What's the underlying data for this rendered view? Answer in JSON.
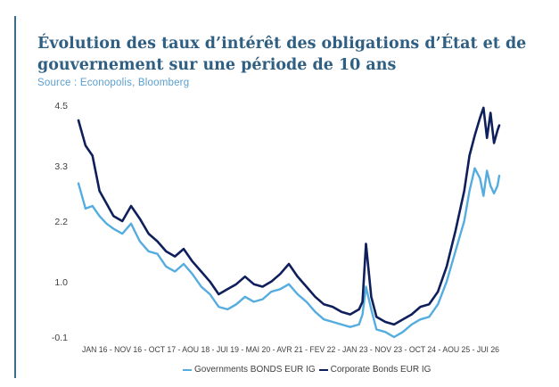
{
  "header": {
    "title": "Évolution des taux d’intérêt des obligations d’État et de gouvernement sur une période de 10 ans",
    "subtitle": "Source : Econopolis, Bloomberg"
  },
  "colors": {
    "accent_bar": "#3d6b8c",
    "title": "#2f5f82",
    "subtitle": "#5a9fcf",
    "governments": "#55acdf",
    "corporate": "#0f1f5c"
  },
  "legend": {
    "governments": "Governments BONDS EUR IG",
    "corporate": "Corporate Bonds EUR IG"
  },
  "chart_data": {
    "type": "line",
    "title": "",
    "xlabel": "",
    "ylabel": "",
    "ylim": [
      -0.1,
      4.5
    ],
    "yticks": [
      "4.5",
      "3.3",
      "2.2",
      "1.0",
      "-0.1"
    ],
    "ytick_values": [
      4.5,
      3.3,
      2.2,
      1.0,
      -0.1
    ],
    "xticks": [
      "JAN 16",
      "NOV 16",
      "OCT 17",
      "AOU 18",
      "JUI 19",
      "MAI 20",
      "AVR 21",
      "FEV 22",
      "JAN 23",
      "NOV 23",
      "OCT 24",
      "AOU 25",
      "JUI 26"
    ],
    "grid": false,
    "legend_position": "bottom",
    "x": [
      0,
      0.2,
      0.4,
      0.6,
      0.8,
      1,
      1.25,
      1.5,
      1.75,
      2,
      2.25,
      2.5,
      2.75,
      3,
      3.25,
      3.5,
      3.75,
      4,
      4.25,
      4.5,
      4.75,
      5,
      5.25,
      5.5,
      5.75,
      6,
      6.25,
      6.5,
      6.75,
      7,
      7.25,
      7.5,
      7.75,
      8,
      8.1,
      8.2,
      8.35,
      8.5,
      8.75,
      9,
      9.25,
      9.5,
      9.75,
      10,
      10.25,
      10.5,
      10.75,
      11,
      11.15,
      11.3,
      11.45,
      11.55,
      11.65,
      11.75,
      11.85,
      11.95,
      12
    ],
    "series": [
      {
        "name": "Governments BONDS EUR IG",
        "values": [
          2.95,
          2.45,
          2.5,
          2.3,
          2.15,
          2.05,
          1.95,
          2.15,
          1.8,
          1.6,
          1.55,
          1.3,
          1.2,
          1.35,
          1.15,
          0.9,
          0.75,
          0.5,
          0.45,
          0.55,
          0.7,
          0.6,
          0.65,
          0.8,
          0.85,
          0.95,
          0.75,
          0.6,
          0.4,
          0.25,
          0.2,
          0.15,
          0.1,
          0.15,
          0.35,
          0.9,
          0.45,
          0.05,
          0.0,
          -0.1,
          0.0,
          0.15,
          0.25,
          0.3,
          0.55,
          1.0,
          1.6,
          2.2,
          2.8,
          3.25,
          3.05,
          2.7,
          3.2,
          2.9,
          2.75,
          2.9,
          3.1
        ]
      },
      {
        "name": "Corporate Bonds EUR IG",
        "values": [
          4.2,
          3.7,
          3.5,
          2.8,
          2.55,
          2.3,
          2.2,
          2.5,
          2.25,
          1.95,
          1.8,
          1.6,
          1.5,
          1.65,
          1.4,
          1.2,
          1.0,
          0.75,
          0.85,
          0.95,
          1.1,
          0.95,
          0.9,
          1.0,
          1.15,
          1.35,
          1.1,
          0.9,
          0.7,
          0.55,
          0.5,
          0.4,
          0.35,
          0.45,
          0.6,
          1.75,
          0.7,
          0.3,
          0.2,
          0.15,
          0.25,
          0.35,
          0.5,
          0.55,
          0.8,
          1.3,
          2.0,
          2.8,
          3.5,
          3.9,
          4.25,
          4.45,
          3.85,
          4.35,
          3.75,
          4.0,
          4.1
        ]
      }
    ]
  }
}
